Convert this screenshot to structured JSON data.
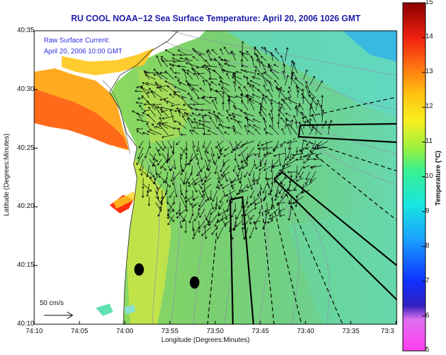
{
  "title": "RU COOL  NOAA−12  Sea Surface Temperature:  April 20, 2006 1026 GMT",
  "annotation": {
    "line1": "Raw Surface Current:",
    "line2": "April 20, 2006 10:00 GMT"
  },
  "scale_label": "50 cm/s",
  "axes": {
    "xlabel": "Longitude (Degrees:Minutes)",
    "ylabel": "Latitude (Degrees:Minutes)",
    "xticks": [
      "74:10",
      "74:05",
      "74:00",
      "73:55",
      "73:50",
      "73:45",
      "73:40",
      "73:35",
      "73:3"
    ],
    "yticks": [
      "40:35",
      "40:30",
      "40:25",
      "40:20",
      "40:15",
      "40:10"
    ]
  },
  "colorbar": {
    "label": "Temperature (°C)",
    "ticks": [
      "15",
      "14",
      "13",
      "12",
      "11",
      "10",
      "9",
      "8",
      "7",
      "6",
      "5"
    ],
    "range": [
      5,
      15
    ]
  },
  "colors": {
    "title": "#1a1aa8",
    "annotation": "#2b2be0",
    "land": "#ffffff",
    "sea_main": "#7ed46a"
  }
}
